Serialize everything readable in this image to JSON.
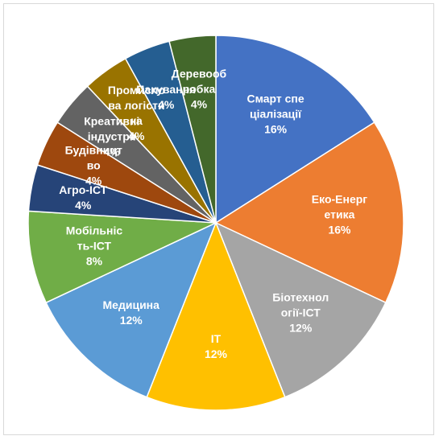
{
  "chart_data": {
    "type": "pie",
    "categories": [
      "Смарт спеціалізації",
      "Еко-Енергетика",
      "Біотехнології-ІСТ",
      "ІТ",
      "Медицина",
      "Мобільність-ІСТ",
      "Агро-ІСТ",
      "Будівництво",
      "Креативні індустрії",
      "Промислова логістика",
      "Пакування",
      "Деревообробка"
    ],
    "values": [
      16,
      16,
      12,
      12,
      12,
      8,
      4,
      4,
      4,
      4,
      4,
      4
    ],
    "value_labels": [
      "16%",
      "16%",
      "12%",
      "12%",
      "12%",
      "8%",
      "4%",
      "4%",
      "4%",
      "4%",
      "4%",
      "4%"
    ],
    "colors": [
      "#4472c4",
      "#ed7d31",
      "#a5a5a5",
      "#ffc000",
      "#5b9bd5",
      "#70ad47",
      "#264478",
      "#9e480e",
      "#636363",
      "#997300",
      "#255e91",
      "#43682b"
    ]
  }
}
